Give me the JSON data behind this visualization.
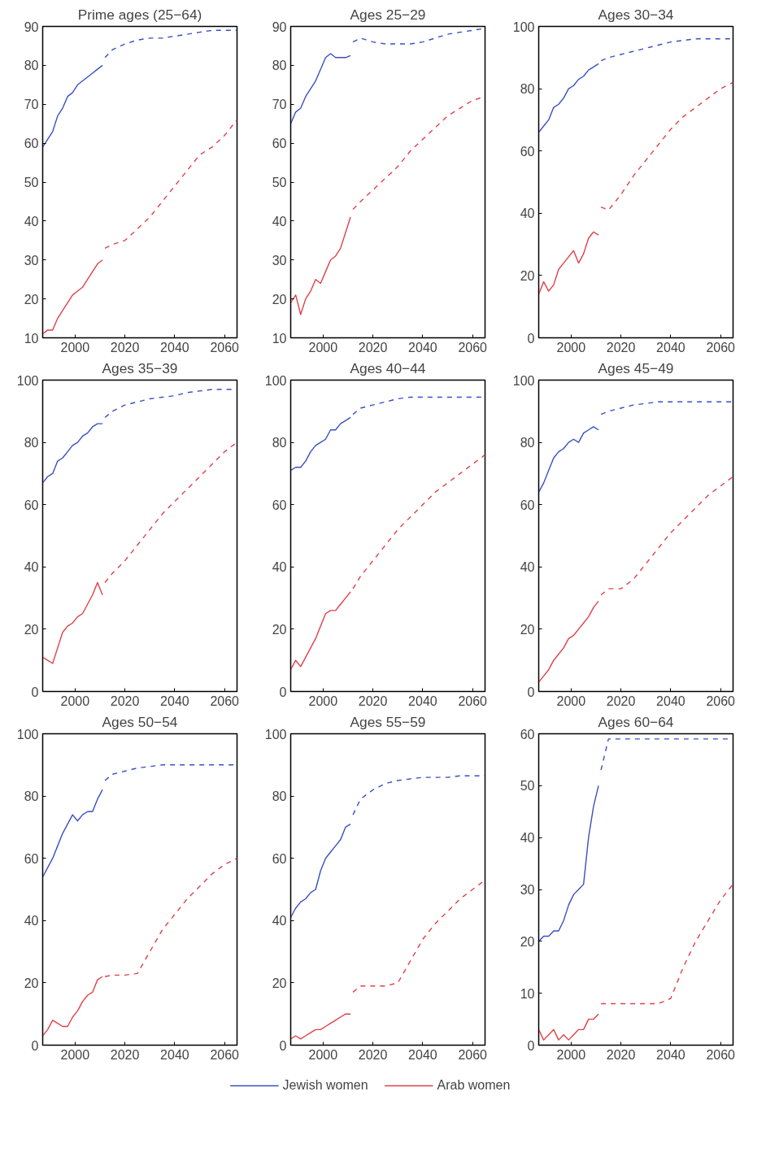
{
  "chart_data": [
    {
      "type": "line",
      "title": "Prime ages (25−64)",
      "xlim": [
        1987,
        2065
      ],
      "xticks": [
        2000,
        2020,
        2040,
        2060
      ],
      "ylim": [
        10,
        90
      ],
      "yticks": [
        10,
        20,
        30,
        40,
        50,
        60,
        70,
        80,
        90
      ],
      "legend": "bottom",
      "series": [
        {
          "name": "Jewish women",
          "color": "#3a4fc2",
          "line_style": "solid",
          "x": [
            1987,
            1989,
            1991,
            1993,
            1995,
            1997,
            1999,
            2001,
            2003,
            2005,
            2007,
            2009,
            2011
          ],
          "values": [
            59,
            61,
            63,
            67,
            69,
            72,
            73,
            75,
            76,
            77,
            78,
            79,
            80
          ]
        },
        {
          "color": "#3a4fc2",
          "line_style": "dashed",
          "x": [
            2012,
            2015,
            2020,
            2025,
            2030,
            2035,
            2040,
            2045,
            2050,
            2055,
            2060,
            2065
          ],
          "values": [
            82,
            84,
            85.5,
            86.5,
            87,
            87,
            87.5,
            88,
            88.5,
            89,
            89,
            89
          ]
        },
        {
          "name": "Arab women",
          "color": "#e0404a",
          "line_style": "solid",
          "x": [
            1987,
            1989,
            1991,
            1993,
            1995,
            1997,
            1999,
            2001,
            2003,
            2005,
            2007,
            2009,
            2011
          ],
          "values": [
            11,
            12,
            12,
            15,
            17,
            19,
            21,
            22,
            23,
            25,
            27,
            29,
            30
          ]
        },
        {
          "color": "#e0404a",
          "line_style": "dashed",
          "x": [
            2012,
            2015,
            2020,
            2025,
            2030,
            2035,
            2040,
            2045,
            2050,
            2055,
            2060,
            2065
          ],
          "values": [
            33,
            34,
            35,
            38,
            41,
            45,
            49,
            53,
            57,
            59,
            62,
            66
          ]
        }
      ]
    },
    {
      "type": "line",
      "title": "Ages 25−29",
      "xlim": [
        1987,
        2065
      ],
      "xticks": [
        2000,
        2020,
        2040,
        2060
      ],
      "ylim": [
        10,
        90
      ],
      "yticks": [
        10,
        20,
        30,
        40,
        50,
        60,
        70,
        80,
        90
      ],
      "series": [
        {
          "color": "#3a4fc2",
          "line_style": "solid",
          "x": [
            1987,
            1989,
            1991,
            1993,
            1995,
            1997,
            1999,
            2001,
            2003,
            2005,
            2007,
            2009,
            2011
          ],
          "values": [
            65,
            68,
            69,
            72,
            74,
            76,
            79,
            82,
            83,
            82,
            82,
            82,
            82.5
          ]
        },
        {
          "color": "#3a4fc2",
          "line_style": "dashed",
          "x": [
            2012,
            2015,
            2020,
            2025,
            2030,
            2035,
            2040,
            2045,
            2050,
            2055,
            2060,
            2065
          ],
          "values": [
            86,
            87,
            86,
            85.5,
            85.5,
            85.5,
            86,
            87,
            88,
            88.5,
            89,
            89.5
          ]
        },
        {
          "color": "#e0404a",
          "line_style": "solid",
          "x": [
            1987,
            1989,
            1991,
            1993,
            1995,
            1997,
            1999,
            2001,
            2003,
            2005,
            2007,
            2009,
            2011
          ],
          "values": [
            19,
            21,
            16,
            20,
            22,
            25,
            24,
            27,
            30,
            31,
            33,
            37,
            41
          ]
        },
        {
          "color": "#e0404a",
          "line_style": "dashed",
          "x": [
            2012,
            2015,
            2020,
            2025,
            2030,
            2035,
            2040,
            2045,
            2050,
            2055,
            2060,
            2065
          ],
          "values": [
            43,
            45,
            48,
            51,
            54,
            58,
            61,
            64,
            67,
            69,
            71,
            72
          ]
        }
      ]
    },
    {
      "type": "line",
      "title": "Ages 30−34",
      "xlim": [
        1987,
        2065
      ],
      "xticks": [
        2000,
        2020,
        2040,
        2060
      ],
      "ylim": [
        0,
        100
      ],
      "yticks": [
        0,
        20,
        40,
        60,
        80,
        100
      ],
      "series": [
        {
          "color": "#3a4fc2",
          "line_style": "solid",
          "x": [
            1987,
            1989,
            1991,
            1993,
            1995,
            1997,
            1999,
            2001,
            2003,
            2005,
            2007,
            2009,
            2011
          ],
          "values": [
            66,
            68,
            70,
            74,
            75,
            77,
            80,
            81,
            83,
            84,
            86,
            87,
            88
          ]
        },
        {
          "color": "#3a4fc2",
          "line_style": "dashed",
          "x": [
            2012,
            2015,
            2020,
            2025,
            2030,
            2035,
            2040,
            2045,
            2050,
            2055,
            2060,
            2065
          ],
          "values": [
            89,
            90,
            91,
            92,
            93,
            94,
            95,
            95.5,
            96,
            96,
            96,
            96
          ]
        },
        {
          "color": "#e0404a",
          "line_style": "solid",
          "x": [
            1987,
            1989,
            1991,
            1993,
            1995,
            1997,
            1999,
            2001,
            2003,
            2005,
            2007,
            2009,
            2011
          ],
          "values": [
            14,
            18,
            15,
            17,
            22,
            24,
            26,
            28,
            24,
            27,
            32,
            34,
            33
          ]
        },
        {
          "color": "#e0404a",
          "line_style": "dashed",
          "x": [
            2012,
            2015,
            2020,
            2025,
            2030,
            2035,
            2040,
            2045,
            2050,
            2055,
            2060,
            2065
          ],
          "values": [
            42,
            41,
            46,
            52,
            57,
            62,
            67,
            71,
            74,
            77,
            80,
            82
          ]
        }
      ]
    },
    {
      "type": "line",
      "title": "Ages 35−39",
      "xlim": [
        1987,
        2065
      ],
      "xticks": [
        2000,
        2020,
        2040,
        2060
      ],
      "ylim": [
        0,
        100
      ],
      "yticks": [
        0,
        20,
        40,
        60,
        80,
        100
      ],
      "series": [
        {
          "color": "#3a4fc2",
          "line_style": "solid",
          "x": [
            1987,
            1989,
            1991,
            1993,
            1995,
            1997,
            1999,
            2001,
            2003,
            2005,
            2007,
            2009,
            2011
          ],
          "values": [
            67,
            69,
            70,
            74,
            75,
            77,
            79,
            80,
            82,
            83,
            85,
            86,
            86
          ]
        },
        {
          "color": "#3a4fc2",
          "line_style": "dashed",
          "x": [
            2012,
            2015,
            2020,
            2025,
            2030,
            2035,
            2040,
            2045,
            2050,
            2055,
            2060,
            2065
          ],
          "values": [
            88,
            90,
            92,
            93,
            94,
            94.5,
            95,
            96,
            96.5,
            97,
            97,
            97
          ]
        },
        {
          "color": "#e0404a",
          "line_style": "solid",
          "x": [
            1987,
            1989,
            1991,
            1993,
            1995,
            1997,
            1999,
            2001,
            2003,
            2005,
            2007,
            2009,
            2011
          ],
          "values": [
            11,
            10,
            9,
            14,
            19,
            21,
            22,
            24,
            25,
            28,
            31,
            35,
            31
          ]
        },
        {
          "color": "#e0404a",
          "line_style": "dashed",
          "x": [
            2012,
            2015,
            2020,
            2025,
            2030,
            2035,
            2040,
            2045,
            2050,
            2055,
            2060,
            2065
          ],
          "values": [
            35,
            38,
            42,
            47,
            52,
            57,
            61,
            65,
            69,
            73,
            77,
            80
          ]
        }
      ]
    },
    {
      "type": "line",
      "title": "Ages 40−44",
      "xlim": [
        1987,
        2065
      ],
      "xticks": [
        2000,
        2020,
        2040,
        2060
      ],
      "ylim": [
        0,
        100
      ],
      "yticks": [
        0,
        20,
        40,
        60,
        80,
        100
      ],
      "series": [
        {
          "color": "#3a4fc2",
          "line_style": "solid",
          "x": [
            1987,
            1989,
            1991,
            1993,
            1995,
            1997,
            1999,
            2001,
            2003,
            2005,
            2007,
            2009,
            2011
          ],
          "values": [
            71,
            72,
            72,
            74,
            77,
            79,
            80,
            81,
            84,
            84,
            86,
            87,
            88
          ]
        },
        {
          "color": "#3a4fc2",
          "line_style": "dashed",
          "x": [
            2012,
            2015,
            2020,
            2025,
            2030,
            2035,
            2040,
            2045,
            2050,
            2055,
            2060,
            2065
          ],
          "values": [
            89,
            91,
            92,
            93,
            94,
            94.5,
            94.5,
            94.5,
            94.5,
            94.5,
            94.5,
            94.5
          ]
        },
        {
          "color": "#e0404a",
          "line_style": "solid",
          "x": [
            1987,
            1989,
            1991,
            1993,
            1995,
            1997,
            1999,
            2001,
            2003,
            2005,
            2007,
            2009,
            2011
          ],
          "values": [
            7,
            10,
            8,
            11,
            14,
            17,
            21,
            25,
            26,
            26,
            28,
            30,
            32
          ]
        },
        {
          "color": "#e0404a",
          "line_style": "dashed",
          "x": [
            2012,
            2015,
            2020,
            2025,
            2030,
            2035,
            2040,
            2045,
            2050,
            2055,
            2060,
            2065
          ],
          "values": [
            33,
            37,
            42,
            47,
            52,
            56,
            60,
            64,
            67,
            70,
            73,
            76
          ]
        }
      ]
    },
    {
      "type": "line",
      "title": "Ages 45−49",
      "xlim": [
        1987,
        2065
      ],
      "xticks": [
        2000,
        2020,
        2040,
        2060
      ],
      "ylim": [
        0,
        100
      ],
      "yticks": [
        0,
        20,
        40,
        60,
        80,
        100
      ],
      "series": [
        {
          "color": "#3a4fc2",
          "line_style": "solid",
          "x": [
            1987,
            1989,
            1991,
            1993,
            1995,
            1997,
            1999,
            2001,
            2003,
            2005,
            2007,
            2009,
            2011
          ],
          "values": [
            64,
            67,
            71,
            75,
            77,
            78,
            80,
            81,
            80,
            83,
            84,
            85,
            84
          ]
        },
        {
          "color": "#3a4fc2",
          "line_style": "dashed",
          "x": [
            2012,
            2015,
            2020,
            2025,
            2030,
            2035,
            2040,
            2045,
            2050,
            2055,
            2060,
            2065
          ],
          "values": [
            89,
            90,
            91,
            92,
            92.5,
            93,
            93,
            93,
            93,
            93,
            93,
            93
          ]
        },
        {
          "color": "#e0404a",
          "line_style": "solid",
          "x": [
            1987,
            1989,
            1991,
            1993,
            1995,
            1997,
            1999,
            2001,
            2003,
            2005,
            2007,
            2009,
            2011
          ],
          "values": [
            3,
            5,
            7,
            10,
            12,
            14,
            17,
            18,
            20,
            22,
            24,
            27,
            29
          ]
        },
        {
          "color": "#e0404a",
          "line_style": "dashed",
          "x": [
            2012,
            2015,
            2020,
            2025,
            2030,
            2035,
            2040,
            2045,
            2050,
            2055,
            2060,
            2065
          ],
          "values": [
            31,
            33,
            33,
            36,
            41,
            46,
            51,
            55,
            59,
            63,
            66,
            69
          ]
        }
      ]
    },
    {
      "type": "line",
      "title": "Ages 50−54",
      "xlim": [
        1987,
        2065
      ],
      "xticks": [
        2000,
        2020,
        2040,
        2060
      ],
      "ylim": [
        0,
        100
      ],
      "yticks": [
        0,
        20,
        40,
        60,
        80,
        100
      ],
      "series": [
        {
          "color": "#3a4fc2",
          "line_style": "solid",
          "x": [
            1987,
            1989,
            1991,
            1993,
            1995,
            1997,
            1999,
            2001,
            2003,
            2005,
            2007,
            2009,
            2011
          ],
          "values": [
            54,
            57,
            60,
            64,
            68,
            71,
            74,
            72,
            74,
            75,
            75,
            79,
            82
          ]
        },
        {
          "color": "#3a4fc2",
          "line_style": "dashed",
          "x": [
            2012,
            2015,
            2020,
            2025,
            2030,
            2035,
            2040,
            2045,
            2050,
            2055,
            2060,
            2065
          ],
          "values": [
            85,
            87,
            88,
            89,
            89.5,
            90,
            90,
            90,
            90,
            90,
            90,
            90
          ]
        },
        {
          "color": "#e0404a",
          "line_style": "solid",
          "x": [
            1987,
            1989,
            1991,
            1993,
            1995,
            1997,
            1999,
            2001,
            2003,
            2005,
            2007,
            2009,
            2011
          ],
          "values": [
            3,
            5,
            8,
            7,
            6,
            6,
            9,
            11,
            14,
            16,
            17,
            21,
            22
          ]
        },
        {
          "color": "#e0404a",
          "line_style": "dashed",
          "x": [
            2012,
            2015,
            2020,
            2025,
            2030,
            2035,
            2040,
            2045,
            2050,
            2055,
            2060,
            2065
          ],
          "values": [
            22,
            22.5,
            22.5,
            23,
            30,
            37,
            42,
            47,
            51,
            55,
            58,
            60
          ]
        }
      ]
    },
    {
      "type": "line",
      "title": "Ages 55−59",
      "xlim": [
        1987,
        2065
      ],
      "xticks": [
        2000,
        2020,
        2040,
        2060
      ],
      "ylim": [
        0,
        100
      ],
      "yticks": [
        0,
        20,
        40,
        60,
        80,
        100
      ],
      "series": [
        {
          "color": "#3a4fc2",
          "line_style": "solid",
          "x": [
            1987,
            1989,
            1991,
            1993,
            1995,
            1997,
            1999,
            2001,
            2003,
            2005,
            2007,
            2009,
            2011
          ],
          "values": [
            41,
            44,
            46,
            47,
            49,
            50,
            56,
            60,
            62,
            64,
            66,
            70,
            71
          ]
        },
        {
          "color": "#3a4fc2",
          "line_style": "dashed",
          "x": [
            2012,
            2015,
            2020,
            2025,
            2030,
            2035,
            2040,
            2045,
            2050,
            2055,
            2060,
            2065
          ],
          "values": [
            74,
            79,
            82,
            84,
            85,
            85.5,
            86,
            86,
            86,
            86.5,
            86.5,
            86.5
          ]
        },
        {
          "color": "#e0404a",
          "line_style": "solid",
          "x": [
            1987,
            1989,
            1991,
            1993,
            1995,
            1997,
            1999,
            2001,
            2003,
            2005,
            2007,
            2009,
            2011
          ],
          "values": [
            2,
            3,
            2,
            3,
            4,
            5,
            5,
            6,
            7,
            8,
            9,
            10,
            10
          ]
        },
        {
          "color": "#e0404a",
          "line_style": "dashed",
          "x": [
            2012,
            2015,
            2020,
            2025,
            2030,
            2035,
            2040,
            2045,
            2050,
            2055,
            2060,
            2065
          ],
          "values": [
            17,
            19,
            19,
            19,
            20,
            27,
            34,
            39,
            43,
            47,
            50,
            53
          ]
        }
      ]
    },
    {
      "type": "line",
      "title": "Ages 60−64",
      "xlim": [
        1987,
        2065
      ],
      "xticks": [
        2000,
        2020,
        2040,
        2060
      ],
      "ylim": [
        0,
        60
      ],
      "yticks": [
        0,
        10,
        20,
        30,
        40,
        50,
        60
      ],
      "series": [
        {
          "color": "#3a4fc2",
          "line_style": "solid",
          "x": [
            1987,
            1989,
            1991,
            1993,
            1995,
            1997,
            1999,
            2001,
            2003,
            2005,
            2007,
            2009,
            2011
          ],
          "values": [
            20,
            21,
            21,
            22,
            22,
            24,
            27,
            29,
            30,
            31,
            40,
            46,
            50
          ]
        },
        {
          "color": "#3a4fc2",
          "line_style": "dashed",
          "x": [
            2012,
            2015,
            2020,
            2025,
            2030,
            2035,
            2040,
            2045,
            2050,
            2055,
            2060,
            2065
          ],
          "values": [
            53,
            59,
            59,
            59,
            59,
            59,
            59,
            59,
            59,
            59,
            59,
            59
          ]
        },
        {
          "color": "#e0404a",
          "line_style": "solid",
          "x": [
            1987,
            1989,
            1991,
            1993,
            1995,
            1997,
            1999,
            2001,
            2003,
            2005,
            2007,
            2009,
            2011
          ],
          "values": [
            3,
            1,
            2,
            3,
            1,
            2,
            1,
            2,
            3,
            3,
            5,
            5,
            6
          ]
        },
        {
          "color": "#e0404a",
          "line_style": "dashed",
          "x": [
            2012,
            2015,
            2020,
            2025,
            2030,
            2035,
            2040,
            2045,
            2050,
            2055,
            2060,
            2065
          ],
          "values": [
            8,
            8,
            8,
            8,
            8,
            8,
            9,
            15,
            20,
            24,
            28,
            31
          ]
        }
      ]
    }
  ]
}
